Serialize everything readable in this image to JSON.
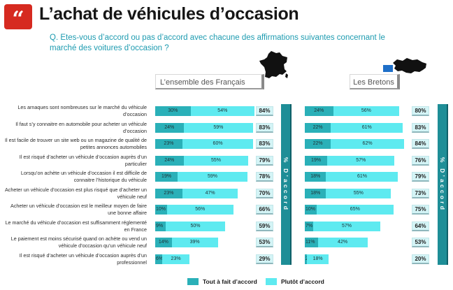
{
  "header": {
    "logo_glyph": "“",
    "title": "L’achat de véhicules d’occasion",
    "question": "Q. Etes-vous d’accord ou pas d’accord avec chacune des affirmations suivantes concernant le marché des voitures d’occasion ?"
  },
  "groups": {
    "france_label": "L’ensemble des Français",
    "bretons_label": "Les Bretons"
  },
  "axis_label": "% D’accord",
  "colors": {
    "tout_a_fait": "#2ab0b8",
    "plutot": "#5eeaf0",
    "accent_red": "#d62a20",
    "question_text": "#1d9bb0"
  },
  "chart_data": [
    {
      "type": "bar",
      "stacked": true,
      "orientation": "horizontal",
      "group": "L’ensemble des Français",
      "categories": [
        "Les arnaques sont nombreuses sur le marché du véhicule d’occasion",
        "Il faut s’y connaitre en automobile pour acheter un véhicule d’occasion",
        "Il est facile de trouver un site web ou un magazine de qualité de petites annonces automobiles",
        "Il est risqué d’acheter un véhicule d’occasion auprès d’un particulier",
        "Lorsqu’on achète un véhicule d’occasion il est difficile de connaitre l’historique du véhicule",
        "Acheter un véhicule d’occasion est plus risqué que d’acheter un véhicule neuf",
        "Acheter un véhicule d’occasion est le meilleur moyen de faire une bonne affaire",
        "Le marché du véhicule d’occasion est suffisamment réglementé en France",
        "Le paiement est moins sécurisé quand on achète ou vend un véhicule d’occasion qu’un véhicule neuf",
        "Il est risqué d’acheter un véhicule d’occasion auprès d’un professionnel"
      ],
      "series": [
        {
          "name": "Tout à fait d’accord",
          "values": [
            30,
            24,
            23,
            24,
            19,
            23,
            10,
            9,
            14,
            6
          ]
        },
        {
          "name": "Plutôt d’accord",
          "values": [
            54,
            59,
            60,
            55,
            59,
            47,
            56,
            50,
            39,
            23
          ]
        }
      ],
      "totals": [
        84,
        83,
        83,
        79,
        78,
        70,
        66,
        59,
        53,
        29
      ]
    },
    {
      "type": "bar",
      "stacked": true,
      "orientation": "horizontal",
      "group": "Les Bretons",
      "series": [
        {
          "name": "Tout à fait d’accord",
          "values": [
            24,
            22,
            22,
            19,
            18,
            18,
            10,
            7,
            11,
            2
          ]
        },
        {
          "name": "Plutôt d’accord",
          "values": [
            56,
            61,
            62,
            57,
            61,
            55,
            65,
            57,
            42,
            18
          ]
        }
      ],
      "totals": [
        80,
        83,
        84,
        76,
        79,
        73,
        75,
        64,
        53,
        20
      ]
    }
  ],
  "legend": [
    {
      "label": "Tout à fait d’accord"
    },
    {
      "label": "Plutôt d’accord"
    }
  ]
}
